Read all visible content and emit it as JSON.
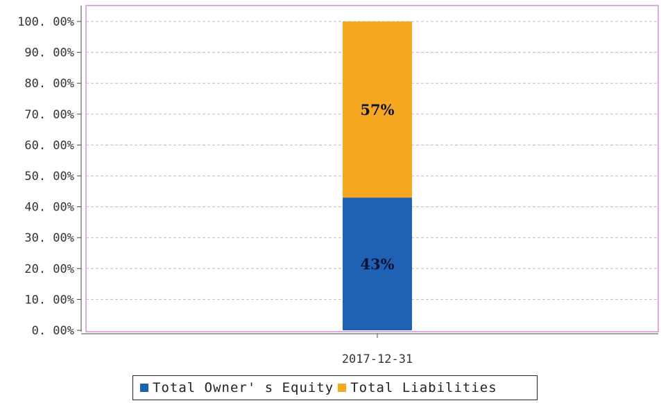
{
  "chart_data": {
    "type": "bar",
    "stacked": true,
    "categories": [
      "2017-12-31"
    ],
    "series": [
      {
        "name": "Total Owner' s Equity",
        "values": [
          43
        ],
        "label": "43%",
        "color": "#1f62b5"
      },
      {
        "name": "Total Liabilities",
        "values": [
          57
        ],
        "label": "57%",
        "color": "#f5a81f"
      }
    ],
    "y_tick_labels": [
      "0. 00%",
      "10. 00%",
      "20. 00%",
      "30. 00%",
      "40. 00%",
      "50. 00%",
      "60. 00%",
      "70. 00%",
      "80. 00%",
      "90. 00%",
      "100. 00%"
    ],
    "ylim": [
      0,
      100
    ],
    "grid": true,
    "legend_position": "bottom",
    "plot_border_color": "#d58fd8",
    "grid_color": "#bbbbbb"
  }
}
